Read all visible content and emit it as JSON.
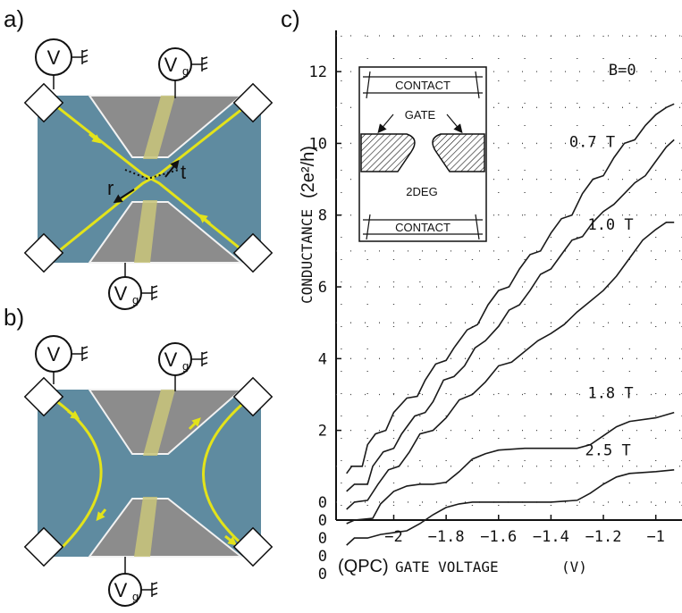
{
  "panels": {
    "a": {
      "label": "a)",
      "voltmeter": "V",
      "gate_top": "V",
      "gate_bottom": "V",
      "gate_sub": "g",
      "r": "r",
      "t": "t"
    },
    "b": {
      "label": "b)",
      "voltmeter": "V",
      "gate_top": "V",
      "gate_bottom": "V",
      "gate_sub": "g"
    },
    "c": {
      "label": "c)"
    }
  },
  "inset": {
    "contact_top": "CONTACT",
    "gate": "GATE",
    "deg": "2DEG",
    "contact_bottom": "CONTACT"
  },
  "colors": {
    "blue_region": "#5f8ba0",
    "gray_region": "#8c8c8c",
    "gate_yellow": "#c9c67a",
    "edge_yellow": "#e3e31a",
    "outline_white": "#f2f2f2",
    "curve": "#1a1a1a"
  },
  "chart_data": {
    "type": "line",
    "xlabel_prefix": "(QPC)",
    "xlabel_main": "GATE VOLTAGE",
    "xlabel_unit": "(V)",
    "ylabel_main": "CONDUCTANCE",
    "ylabel_unit": "(2e²/h)",
    "xlim": [
      -2.22,
      -0.9
    ],
    "ylim": [
      -0.5,
      13
    ],
    "xticks": [
      -2,
      -1.8,
      -1.6,
      -1.4,
      -1.2,
      -1
    ],
    "xtick_labels": [
      "-2",
      "-1.8",
      "-1.6",
      "-1.4",
      "-1.2",
      "-1"
    ],
    "yticks": [
      2,
      4,
      6,
      8,
      10,
      12
    ],
    "ytick_labels": [
      "2",
      "4",
      "6",
      "8",
      "10",
      "12"
    ],
    "offset_zero_labels": [
      "0",
      "0",
      "0",
      "0",
      "0"
    ],
    "grid": true,
    "series": [
      {
        "name": "B=0",
        "offset": 1.0,
        "points": [
          [
            -2.18,
            0.8
          ],
          [
            -2.16,
            1.0
          ],
          [
            -2.12,
            1.0
          ],
          [
            -2.1,
            1.6
          ],
          [
            -2.07,
            1.9
          ],
          [
            -2.03,
            2.0
          ],
          [
            -2.0,
            2.5
          ],
          [
            -1.95,
            2.9
          ],
          [
            -1.91,
            2.95
          ],
          [
            -1.88,
            3.4
          ],
          [
            -1.84,
            3.85
          ],
          [
            -1.8,
            3.95
          ],
          [
            -1.77,
            4.3
          ],
          [
            -1.72,
            4.8
          ],
          [
            -1.68,
            4.95
          ],
          [
            -1.64,
            5.5
          ],
          [
            -1.6,
            5.9
          ],
          [
            -1.56,
            6.0
          ],
          [
            -1.52,
            6.5
          ],
          [
            -1.48,
            6.9
          ],
          [
            -1.44,
            7.0
          ],
          [
            -1.4,
            7.5
          ],
          [
            -1.36,
            7.9
          ],
          [
            -1.32,
            8.0
          ],
          [
            -1.28,
            8.6
          ],
          [
            -1.24,
            9.0
          ],
          [
            -1.2,
            9.1
          ],
          [
            -1.16,
            9.6
          ],
          [
            -1.12,
            10.0
          ],
          [
            -1.08,
            10.1
          ],
          [
            -1.04,
            10.5
          ],
          [
            -1.0,
            10.8
          ],
          [
            -0.96,
            11.0
          ],
          [
            -0.93,
            11.1
          ]
        ]
      },
      {
        "name": "0.7 T",
        "offset": 0.5,
        "points": [
          [
            -2.18,
            0.3
          ],
          [
            -2.15,
            0.5
          ],
          [
            -2.1,
            0.5
          ],
          [
            -2.08,
            1.0
          ],
          [
            -2.04,
            1.4
          ],
          [
            -2.0,
            1.5
          ],
          [
            -1.97,
            1.9
          ],
          [
            -1.92,
            2.4
          ],
          [
            -1.88,
            2.5
          ],
          [
            -1.85,
            2.8
          ],
          [
            -1.81,
            3.4
          ],
          [
            -1.77,
            3.5
          ],
          [
            -1.73,
            3.8
          ],
          [
            -1.69,
            4.3
          ],
          [
            -1.65,
            4.5
          ],
          [
            -1.6,
            4.9
          ],
          [
            -1.56,
            5.35
          ],
          [
            -1.52,
            5.5
          ],
          [
            -1.48,
            5.9
          ],
          [
            -1.44,
            6.35
          ],
          [
            -1.4,
            6.5
          ],
          [
            -1.36,
            6.9
          ],
          [
            -1.32,
            7.3
          ],
          [
            -1.28,
            7.4
          ],
          [
            -1.24,
            7.8
          ],
          [
            -1.2,
            8.1
          ],
          [
            -1.16,
            8.3
          ],
          [
            -1.12,
            8.6
          ],
          [
            -1.08,
            8.9
          ],
          [
            -1.04,
            9.1
          ],
          [
            -1.0,
            9.5
          ],
          [
            -0.96,
            9.9
          ],
          [
            -0.93,
            10.1
          ]
        ]
      },
      {
        "name": "1.0 T",
        "offset": 0.0,
        "points": [
          [
            -2.18,
            -0.2
          ],
          [
            -2.15,
            0.0
          ],
          [
            -2.1,
            0.05
          ],
          [
            -2.06,
            0.5
          ],
          [
            -2.02,
            0.9
          ],
          [
            -1.98,
            1.0
          ],
          [
            -1.94,
            1.4
          ],
          [
            -1.9,
            1.9
          ],
          [
            -1.85,
            2.0
          ],
          [
            -1.8,
            2.35
          ],
          [
            -1.75,
            2.85
          ],
          [
            -1.7,
            3.0
          ],
          [
            -1.65,
            3.35
          ],
          [
            -1.6,
            3.8
          ],
          [
            -1.55,
            3.9
          ],
          [
            -1.5,
            4.2
          ],
          [
            -1.45,
            4.5
          ],
          [
            -1.4,
            4.7
          ],
          [
            -1.35,
            4.95
          ],
          [
            -1.3,
            5.3
          ],
          [
            -1.25,
            5.6
          ],
          [
            -1.2,
            5.9
          ],
          [
            -1.15,
            6.3
          ],
          [
            -1.1,
            6.8
          ],
          [
            -1.05,
            7.3
          ],
          [
            -1.0,
            7.6
          ],
          [
            -0.96,
            7.8
          ],
          [
            -0.93,
            7.8
          ]
        ]
      },
      {
        "name": "1.8 T",
        "offset": -0.5,
        "points": [
          [
            -2.18,
            -0.6
          ],
          [
            -2.15,
            -0.5
          ],
          [
            -2.08,
            -0.45
          ],
          [
            -2.05,
            -0.05
          ],
          [
            -2.0,
            0.3
          ],
          [
            -1.95,
            0.45
          ],
          [
            -1.9,
            0.5
          ],
          [
            -1.85,
            0.5
          ],
          [
            -1.8,
            0.55
          ],
          [
            -1.75,
            0.85
          ],
          [
            -1.7,
            1.2
          ],
          [
            -1.65,
            1.35
          ],
          [
            -1.6,
            1.45
          ],
          [
            -1.5,
            1.5
          ],
          [
            -1.4,
            1.5
          ],
          [
            -1.3,
            1.5
          ],
          [
            -1.25,
            1.6
          ],
          [
            -1.2,
            1.85
          ],
          [
            -1.15,
            2.1
          ],
          [
            -1.1,
            2.25
          ],
          [
            -1.0,
            2.35
          ],
          [
            -0.93,
            2.5
          ]
        ]
      },
      {
        "name": "2.5 T",
        "offset": -1.0,
        "points": [
          [
            -2.18,
            -1.2
          ],
          [
            -2.15,
            -1.0
          ],
          [
            -2.1,
            -1.0
          ],
          [
            -2.05,
            -0.9
          ],
          [
            -2.0,
            -0.85
          ],
          [
            -1.95,
            -0.8
          ],
          [
            -1.9,
            -0.6
          ],
          [
            -1.85,
            -0.35
          ],
          [
            -1.8,
            -0.15
          ],
          [
            -1.75,
            -0.05
          ],
          [
            -1.7,
            0.0
          ],
          [
            -1.6,
            0.0
          ],
          [
            -1.5,
            0.0
          ],
          [
            -1.4,
            0.0
          ],
          [
            -1.3,
            0.05
          ],
          [
            -1.25,
            0.25
          ],
          [
            -1.2,
            0.5
          ],
          [
            -1.15,
            0.7
          ],
          [
            -1.1,
            0.8
          ],
          [
            -1.0,
            0.85
          ],
          [
            -0.93,
            0.9
          ]
        ]
      }
    ]
  }
}
